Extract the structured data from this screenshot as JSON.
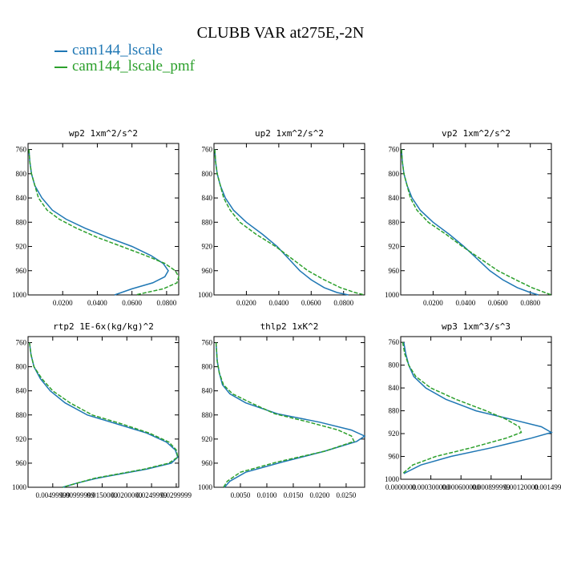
{
  "title": "CLUBB VAR at275E,-2N",
  "legend": [
    {
      "label": "cam144_lscale",
      "color": "#1f77b4"
    },
    {
      "label": "cam144_lscale_pmf",
      "color": "#2ca02c"
    }
  ],
  "chart_data": [
    {
      "type": "line",
      "title": "wp2  1xm^2/s^2",
      "ylim": [
        1000,
        750
      ],
      "xlim": [
        0,
        0.087
      ],
      "y_ticks": [
        "760",
        "800",
        "840",
        "880",
        "920",
        "960",
        "1000"
      ],
      "x_ticks": [
        "0.0200",
        "0.0400",
        "0.0600",
        "0.0800"
      ],
      "x_tick_values": [
        0.02,
        0.04,
        0.06,
        0.08
      ],
      "series": [
        {
          "name": "cam144_lscale",
          "color": "#1f77b4",
          "dashed": false,
          "x": [
            0.0005,
            0.001,
            0.002,
            0.004,
            0.008,
            0.014,
            0.022,
            0.033,
            0.046,
            0.06,
            0.071,
            0.078,
            0.081,
            0.079,
            0.072,
            0.06,
            0.05
          ],
          "y": [
            760,
            780,
            800,
            820,
            840,
            860,
            875,
            890,
            905,
            920,
            935,
            948,
            960,
            970,
            980,
            990,
            1000
          ]
        },
        {
          "name": "cam144_lscale_pmf",
          "color": "#2ca02c",
          "dashed": true,
          "x": [
            0.0005,
            0.001,
            0.002,
            0.004,
            0.006,
            0.011,
            0.018,
            0.028,
            0.04,
            0.054,
            0.068,
            0.079,
            0.085,
            0.087,
            0.086,
            0.078,
            0.062
          ],
          "y": [
            760,
            780,
            800,
            820,
            840,
            860,
            875,
            890,
            905,
            920,
            935,
            948,
            960,
            970,
            980,
            990,
            1000
          ]
        }
      ]
    },
    {
      "type": "line",
      "title": "up2  1xm^2/s^2",
      "ylim": [
        1000,
        750
      ],
      "xlim": [
        0,
        0.093
      ],
      "y_ticks": [
        "760",
        "800",
        "840",
        "880",
        "920",
        "960",
        "1000"
      ],
      "x_ticks": [
        "0.0200",
        "0.0400",
        "0.0600",
        "0.0800"
      ],
      "x_tick_values": [
        0.02,
        0.04,
        0.06,
        0.08
      ],
      "series": [
        {
          "name": "cam144_lscale",
          "color": "#1f77b4",
          "dashed": false,
          "x": [
            0.0005,
            0.001,
            0.002,
            0.004,
            0.007,
            0.012,
            0.02,
            0.03,
            0.039,
            0.046,
            0.053,
            0.06,
            0.068,
            0.076,
            0.083
          ],
          "y": [
            760,
            780,
            800,
            820,
            840,
            860,
            880,
            900,
            920,
            940,
            960,
            975,
            988,
            996,
            1000
          ]
        },
        {
          "name": "cam144_lscale_pmf",
          "color": "#2ca02c",
          "dashed": true,
          "x": [
            0.0005,
            0.001,
            0.002,
            0.004,
            0.006,
            0.01,
            0.016,
            0.026,
            0.038,
            0.048,
            0.058,
            0.068,
            0.078,
            0.087,
            0.093
          ],
          "y": [
            760,
            780,
            800,
            820,
            840,
            860,
            880,
            900,
            920,
            940,
            960,
            975,
            988,
            996,
            1000
          ]
        }
      ]
    },
    {
      "type": "line",
      "title": "vp2  1xm^2/s^2",
      "ylim": [
        1000,
        750
      ],
      "xlim": [
        0,
        0.093
      ],
      "y_ticks": [
        "760",
        "800",
        "840",
        "880",
        "920",
        "960",
        "1000"
      ],
      "x_ticks": [
        "0.0200",
        "0.0400",
        "0.0600",
        "0.0800"
      ],
      "x_tick_values": [
        0.02,
        0.04,
        0.06,
        0.08
      ],
      "series": [
        {
          "name": "cam144_lscale",
          "color": "#1f77b4",
          "dashed": false,
          "x": [
            0.0005,
            0.001,
            0.002,
            0.004,
            0.007,
            0.012,
            0.02,
            0.03,
            0.039,
            0.047,
            0.055,
            0.063,
            0.072,
            0.08,
            0.085
          ],
          "y": [
            760,
            780,
            800,
            820,
            840,
            860,
            880,
            900,
            920,
            940,
            960,
            975,
            988,
            996,
            1000
          ]
        },
        {
          "name": "cam144_lscale_pmf",
          "color": "#2ca02c",
          "dashed": true,
          "x": [
            0.0005,
            0.001,
            0.002,
            0.004,
            0.006,
            0.01,
            0.017,
            0.028,
            0.038,
            0.049,
            0.06,
            0.071,
            0.081,
            0.089,
            0.093
          ],
          "y": [
            760,
            780,
            800,
            820,
            840,
            860,
            880,
            900,
            920,
            940,
            960,
            975,
            988,
            996,
            1000
          ]
        }
      ]
    },
    {
      "type": "line",
      "title": "rtp2  1E-6x(kg/kg)^2",
      "ylim": [
        1000,
        750
      ],
      "xlim": [
        0,
        0.0305
      ],
      "y_ticks": [
        "760",
        "800",
        "840",
        "880",
        "920",
        "960",
        "1000"
      ],
      "x_ticks": [
        "0.00499999",
        "0.00999999",
        "0.0150000",
        "0.0200000",
        "0.0249999",
        "0.0299999"
      ],
      "x_tick_values": [
        0.005,
        0.01,
        0.015,
        0.02,
        0.025,
        0.03
      ],
      "series": [
        {
          "name": "cam144_lscale",
          "color": "#1f77b4",
          "dashed": false,
          "x": [
            0.0003,
            0.0006,
            0.0012,
            0.0025,
            0.0045,
            0.0075,
            0.012,
            0.018,
            0.024,
            0.028,
            0.0298,
            0.0303,
            0.029,
            0.024,
            0.014,
            0.01,
            0.007
          ],
          "y": [
            760,
            780,
            800,
            820,
            840,
            860,
            880,
            895,
            910,
            925,
            938,
            950,
            960,
            970,
            985,
            993,
            1000
          ]
        },
        {
          "name": "cam144_lscale_pmf",
          "color": "#2ca02c",
          "dashed": true,
          "x": [
            0.0003,
            0.0006,
            0.0012,
            0.0028,
            0.005,
            0.0085,
            0.013,
            0.019,
            0.0245,
            0.0285,
            0.03,
            0.0303,
            0.0285,
            0.0235,
            0.0135,
            0.01,
            0.007
          ],
          "y": [
            760,
            780,
            800,
            820,
            840,
            860,
            880,
            895,
            910,
            925,
            938,
            950,
            960,
            970,
            985,
            993,
            1000
          ]
        }
      ]
    },
    {
      "type": "line",
      "title": "thlp2  1xK^2",
      "ylim": [
        1000,
        750
      ],
      "xlim": [
        0,
        0.0285
      ],
      "y_ticks": [
        "760",
        "800",
        "840",
        "880",
        "920",
        "960",
        "1000"
      ],
      "x_ticks": [
        "0.0050",
        "0.0100",
        "0.0150",
        "0.0200",
        "0.0250"
      ],
      "x_tick_values": [
        0.005,
        0.01,
        0.015,
        0.02,
        0.025
      ],
      "series": [
        {
          "name": "cam144_lscale",
          "color": "#1f77b4",
          "dashed": false,
          "x": [
            0.0004,
            0.0006,
            0.001,
            0.0016,
            0.003,
            0.006,
            0.012,
            0.02,
            0.026,
            0.0285,
            0.027,
            0.021,
            0.013,
            0.006,
            0.003,
            0.002
          ],
          "y": [
            760,
            790,
            810,
            830,
            845,
            860,
            878,
            892,
            905,
            915,
            924,
            940,
            958,
            975,
            990,
            1000
          ]
        },
        {
          "name": "cam144_lscale_pmf",
          "color": "#2ca02c",
          "dashed": true,
          "x": [
            0.0004,
            0.0006,
            0.001,
            0.0018,
            0.0035,
            0.007,
            0.0115,
            0.018,
            0.0235,
            0.026,
            0.0265,
            0.021,
            0.012,
            0.005,
            0.0025,
            0.0018
          ],
          "y": [
            760,
            790,
            810,
            830,
            845,
            860,
            878,
            892,
            905,
            915,
            924,
            940,
            958,
            975,
            990,
            1000
          ]
        }
      ]
    },
    {
      "type": "line",
      "title": "wp3  1xm^3/s^3",
      "ylim": [
        1000,
        750
      ],
      "xlim": [
        0,
        0.0015
      ],
      "y_ticks": [
        "760",
        "800",
        "840",
        "880",
        "920",
        "960",
        "1000"
      ],
      "x_ticks": [
        "0.0000000",
        "0.000300000",
        "0.000600000",
        "0.000899999",
        "0.00120000",
        "0.00149999"
      ],
      "x_tick_values": [
        0,
        0.0003,
        0.0006,
        0.0009,
        0.0012,
        0.0015
      ],
      "series": [
        {
          "name": "cam144_lscale",
          "color": "#1f77b4",
          "dashed": false,
          "x": [
            3e-05,
            5e-05,
            8e-05,
            0.00013,
            0.00025,
            0.00045,
            0.00075,
            0.0011,
            0.0014,
            0.0015,
            0.0013,
            0.0009,
            0.0005,
            0.0002,
            3e-05
          ],
          "y": [
            760,
            780,
            800,
            820,
            840,
            860,
            880,
            895,
            908,
            918,
            928,
            945,
            960,
            975,
            990
          ]
        },
        {
          "name": "cam144_lscale_pmf",
          "color": "#2ca02c",
          "dashed": true,
          "x": [
            2e-05,
            4e-05,
            8e-05,
            0.00015,
            0.0003,
            0.00055,
            0.00085,
            0.00105,
            0.00118,
            0.0012,
            0.00105,
            0.0007,
            0.00035,
            0.00012,
            2e-05
          ],
          "y": [
            760,
            780,
            800,
            820,
            840,
            860,
            880,
            895,
            908,
            918,
            928,
            945,
            960,
            975,
            990
          ]
        }
      ]
    }
  ]
}
